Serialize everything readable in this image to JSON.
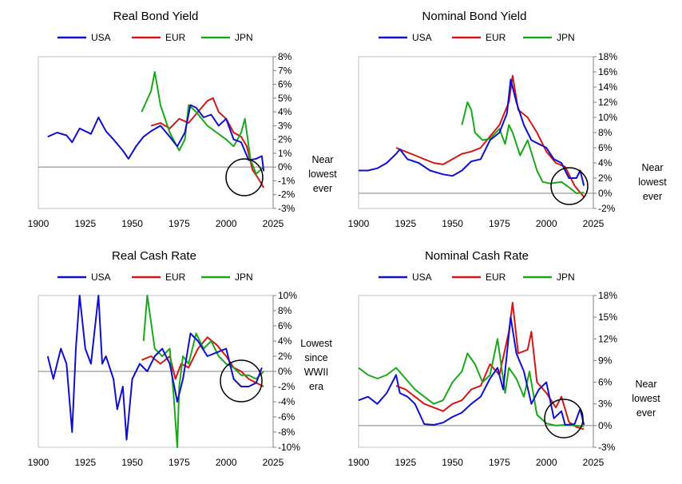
{
  "charts": [
    {
      "title": "Real Bond Yield",
      "yticks": [
        "8%",
        "7%",
        "6%",
        "5%",
        "4%",
        "3%",
        "2%",
        "1%",
        "0%",
        "-1%",
        "-2%",
        "-3%"
      ],
      "xticks": [
        "1900",
        "1925",
        "1950",
        "1975",
        "2000",
        "2025"
      ],
      "legend": [
        "USA",
        "EUR",
        "JPN"
      ],
      "note": [
        "Near",
        "lowest",
        "ever"
      ]
    },
    {
      "title": "Nominal Bond Yield",
      "yticks": [
        "18%",
        "16%",
        "14%",
        "12%",
        "10%",
        "8%",
        "6%",
        "4%",
        "2%",
        "0%",
        "-2%"
      ],
      "xticks": [
        "1900",
        "1925",
        "1950",
        "1975",
        "2000",
        "2025"
      ],
      "legend": [
        "USA",
        "EUR",
        "JPN"
      ],
      "note": [
        "Near",
        "lowest",
        "ever"
      ]
    },
    {
      "title": "Real Cash Rate",
      "yticks": [
        "10%",
        "8%",
        "6%",
        "4%",
        "2%",
        "0%",
        "-2%",
        "-4%",
        "-6%",
        "-8%",
        "-10%"
      ],
      "xticks": [
        "1900",
        "1925",
        "1950",
        "1975",
        "2000",
        "2025"
      ],
      "legend": [
        "USA",
        "EUR",
        "JPN"
      ],
      "note": [
        "Lowest",
        "since",
        "WWII",
        "era"
      ]
    },
    {
      "title": "Nominal Cash Rate",
      "yticks": [
        "18%",
        "15%",
        "12%",
        "9%",
        "6%",
        "3%",
        "0%",
        "-3%"
      ],
      "xticks": [
        "1900",
        "1925",
        "1950",
        "1975",
        "2000",
        "2025"
      ],
      "legend": [
        "USA",
        "EUR",
        "JPN"
      ],
      "note": [
        "Near",
        "lowest",
        "ever"
      ]
    }
  ],
  "colors": {
    "USA": "#1010c8",
    "EUR": "#d01818",
    "JPN": "#1aa81a"
  },
  "chart_data": [
    {
      "type": "line",
      "title": "Real Bond Yield",
      "xlim": [
        1900,
        2025
      ],
      "ylim": [
        -3,
        8
      ],
      "series": [
        {
          "name": "USA",
          "x": [
            1905,
            1910,
            1915,
            1918,
            1922,
            1928,
            1932,
            1936,
            1940,
            1945,
            1948,
            1952,
            1956,
            1960,
            1965,
            1970,
            1974,
            1978,
            1981,
            1984,
            1988,
            1992,
            1996,
            2000,
            2004,
            2008,
            2012,
            2016,
            2019,
            2020
          ],
          "y": [
            2.2,
            2.5,
            2.3,
            1.8,
            2.8,
            2.4,
            3.6,
            2.6,
            2.0,
            1.2,
            0.6,
            1.5,
            2.2,
            2.6,
            3.0,
            2.2,
            1.5,
            2.5,
            4.5,
            4.3,
            3.6,
            3.8,
            3.0,
            3.5,
            2.0,
            1.8,
            0.5,
            0.6,
            0.8,
            -0.3
          ]
        },
        {
          "name": "EUR",
          "x": [
            1960,
            1965,
            1970,
            1975,
            1980,
            1985,
            1990,
            1993,
            1996,
            2000,
            2004,
            2008,
            2011,
            2014,
            2017,
            2020
          ],
          "y": [
            3.0,
            3.2,
            2.8,
            3.5,
            3.2,
            4.0,
            4.8,
            5.0,
            4.0,
            3.5,
            2.5,
            2.2,
            1.5,
            -0.2,
            -0.8,
            -1.5
          ]
        },
        {
          "name": "JPN",
          "x": [
            1955,
            1960,
            1962,
            1965,
            1970,
            1975,
            1978,
            1980,
            1984,
            1990,
            1995,
            2000,
            2004,
            2008,
            2010,
            2013,
            2016,
            2020
          ],
          "y": [
            4.0,
            5.5,
            6.9,
            4.5,
            2.5,
            1.2,
            2.0,
            4.5,
            4.0,
            3.0,
            2.5,
            2.0,
            1.5,
            2.5,
            3.5,
            0.5,
            -0.5,
            0.0
          ]
        }
      ]
    },
    {
      "type": "line",
      "title": "Nominal Bond Yield",
      "xlim": [
        1900,
        2025
      ],
      "ylim": [
        -2,
        18
      ],
      "series": [
        {
          "name": "USA",
          "x": [
            1900,
            1905,
            1910,
            1915,
            1920,
            1922,
            1926,
            1932,
            1938,
            1945,
            1950,
            1955,
            1960,
            1965,
            1970,
            1975,
            1979,
            1981,
            1984,
            1988,
            1992,
            1996,
            2000,
            2004,
            2008,
            2012,
            2016,
            2018,
            2020
          ],
          "y": [
            3.0,
            3.0,
            3.3,
            4.0,
            5.2,
            5.8,
            4.5,
            4.0,
            3.0,
            2.5,
            2.3,
            3.0,
            4.2,
            4.5,
            7.0,
            8.0,
            10.5,
            15.0,
            12.0,
            9.0,
            7.0,
            6.5,
            6.0,
            4.5,
            4.0,
            2.0,
            2.0,
            3.0,
            1.0
          ]
        },
        {
          "name": "EUR",
          "x": [
            1920,
            1925,
            1930,
            1935,
            1940,
            1945,
            1950,
            1955,
            1960,
            1965,
            1970,
            1975,
            1980,
            1982,
            1985,
            1990,
            1995,
            2000,
            2005,
            2010,
            2015,
            2020
          ],
          "y": [
            6.0,
            5.5,
            5.0,
            4.5,
            4.0,
            3.8,
            4.5,
            5.2,
            5.5,
            6.0,
            7.5,
            9.0,
            12.0,
            15.5,
            11.0,
            10.0,
            8.0,
            5.5,
            4.0,
            3.5,
            1.0,
            -0.5
          ]
        },
        {
          "name": "JPN",
          "x": [
            1955,
            1958,
            1960,
            1962,
            1966,
            1970,
            1975,
            1978,
            1980,
            1982,
            1986,
            1990,
            1995,
            1998,
            2002,
            2008,
            2012,
            2016,
            2020
          ],
          "y": [
            9.0,
            12.0,
            11.0,
            8.0,
            7.0,
            7.2,
            8.5,
            6.5,
            9.0,
            8.0,
            5.0,
            7.0,
            3.0,
            1.5,
            1.3,
            1.5,
            0.8,
            0.0,
            0.1
          ]
        }
      ]
    },
    {
      "type": "line",
      "title": "Real Cash Rate",
      "xlim": [
        1900,
        2025
      ],
      "ylim": [
        -10,
        10
      ],
      "series": [
        {
          "name": "USA",
          "x": [
            1905,
            1908,
            1912,
            1915,
            1918,
            1920,
            1922,
            1925,
            1928,
            1932,
            1934,
            1936,
            1940,
            1942,
            1945,
            1947,
            1950,
            1954,
            1958,
            1962,
            1966,
            1970,
            1974,
            1977,
            1981,
            1985,
            1990,
            1995,
            2000,
            2004,
            2008,
            2012,
            2016,
            2019
          ],
          "y": [
            2.0,
            -1.0,
            3.0,
            1.0,
            -8.0,
            3.0,
            10.0,
            3.0,
            1.0,
            10.0,
            1.0,
            2.0,
            -1.0,
            -5.0,
            -2.0,
            -9.0,
            -1.0,
            1.0,
            0.0,
            2.0,
            3.0,
            1.0,
            -4.0,
            -1.0,
            5.0,
            4.0,
            2.0,
            2.5,
            3.0,
            -1.0,
            -2.0,
            -2.0,
            -1.5,
            0.5
          ]
        },
        {
          "name": "EUR",
          "x": [
            1955,
            1960,
            1965,
            1970,
            1973,
            1976,
            1980,
            1985,
            1990,
            1995,
            2000,
            2004,
            2008,
            2012,
            2016,
            2020
          ],
          "y": [
            1.5,
            2.0,
            1.0,
            2.0,
            -1.0,
            1.0,
            0.5,
            3.0,
            4.5,
            3.5,
            2.0,
            0.5,
            0.0,
            -1.0,
            -1.5,
            -2.0
          ]
        },
        {
          "name": "JPN",
          "x": [
            1956,
            1958,
            1962,
            1966,
            1970,
            1972,
            1974,
            1975,
            1977,
            1980,
            1984,
            1988,
            1992,
            1996,
            2000,
            2004,
            2008,
            2012,
            2016,
            2020
          ],
          "y": [
            4.0,
            10.0,
            3.0,
            2.0,
            3.0,
            -3.0,
            -10.0,
            -2.0,
            2.0,
            1.0,
            5.0,
            3.0,
            4.0,
            2.0,
            1.0,
            0.5,
            -0.5,
            -0.5,
            -1.0,
            0.0
          ]
        }
      ]
    },
    {
      "type": "line",
      "title": "Nominal Cash Rate",
      "xlim": [
        1900,
        2025
      ],
      "ylim": [
        -3,
        18
      ],
      "series": [
        {
          "name": "USA",
          "x": [
            1900,
            1905,
            1910,
            1915,
            1920,
            1922,
            1926,
            1930,
            1935,
            1940,
            1945,
            1950,
            1955,
            1960,
            1965,
            1970,
            1974,
            1977,
            1981,
            1984,
            1988,
            1992,
            1996,
            2000,
            2004,
            2008,
            2010,
            2015,
            2018,
            2020
          ],
          "y": [
            3.5,
            4.0,
            3.0,
            4.5,
            7.0,
            4.5,
            4.0,
            3.0,
            0.2,
            0.1,
            0.4,
            1.2,
            1.8,
            3.0,
            4.0,
            6.5,
            8.0,
            5.0,
            15.0,
            10.0,
            7.5,
            3.0,
            5.0,
            6.0,
            1.0,
            2.0,
            0.1,
            0.2,
            2.3,
            0.1
          ]
        },
        {
          "name": "EUR",
          "x": [
            1920,
            1925,
            1930,
            1935,
            1940,
            1945,
            1950,
            1955,
            1960,
            1965,
            1970,
            1975,
            1980,
            1982,
            1985,
            1990,
            1992,
            1995,
            2000,
            2005,
            2008,
            2012,
            2016,
            2020
          ],
          "y": [
            5.5,
            5.0,
            4.0,
            3.0,
            2.5,
            2.0,
            3.0,
            3.5,
            5.0,
            5.5,
            8.5,
            7.0,
            13.0,
            17.0,
            10.0,
            10.5,
            13.0,
            6.0,
            4.5,
            2.5,
            4.0,
            0.5,
            -0.2,
            -0.5
          ]
        },
        {
          "name": "JPN",
          "x": [
            1900,
            1905,
            1910,
            1915,
            1920,
            1925,
            1930,
            1935,
            1940,
            1945,
            1950,
            1955,
            1958,
            1962,
            1966,
            1970,
            1974,
            1978,
            1980,
            1984,
            1988,
            1991,
            1995,
            2000,
            2005,
            2010,
            2015,
            2020
          ],
          "y": [
            8.0,
            7.0,
            6.5,
            7.0,
            8.0,
            6.5,
            5.0,
            4.0,
            3.0,
            3.5,
            6.0,
            7.5,
            10.0,
            8.5,
            6.0,
            7.0,
            12.0,
            4.5,
            8.0,
            6.5,
            4.0,
            7.5,
            1.5,
            0.3,
            0.0,
            0.1,
            0.0,
            -0.1
          ]
        }
      ]
    }
  ]
}
